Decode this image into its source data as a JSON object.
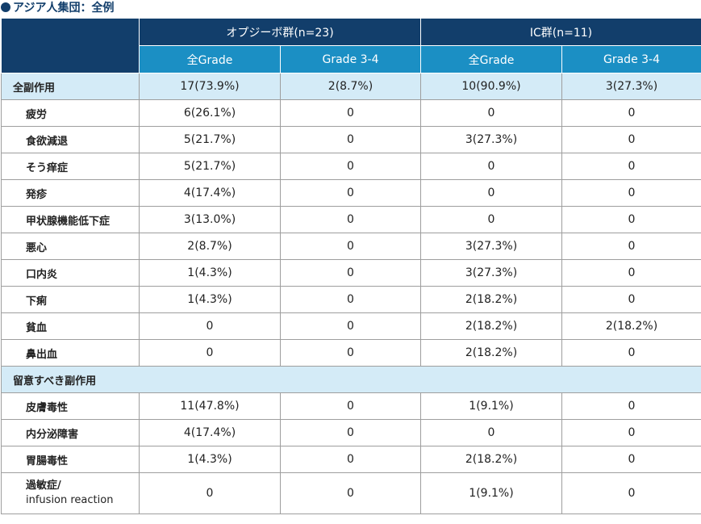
{
  "title": "アジア人集団：全例",
  "groups": [
    {
      "label": "オプジーボ群(n=23)"
    },
    {
      "label": "IC群(n=11)"
    }
  ],
  "subheaders": [
    "全Grade",
    "Grade 3-4",
    "全Grade",
    "Grade 3-4"
  ],
  "sections": [
    {
      "label": "全副作用",
      "values": [
        "17(73.9%)",
        "2(8.7%)",
        "10(90.9%)",
        "3(27.3%)"
      ],
      "rows": [
        {
          "label": "疲労",
          "values": [
            "6(26.1%)",
            "0",
            "0",
            "0"
          ]
        },
        {
          "label": "食欲減退",
          "values": [
            "5(21.7%)",
            "0",
            "3(27.3%)",
            "0"
          ]
        },
        {
          "label": "そう痒症",
          "values": [
            "5(21.7%)",
            "0",
            "0",
            "0"
          ]
        },
        {
          "label": "発疹",
          "values": [
            "4(17.4%)",
            "0",
            "0",
            "0"
          ]
        },
        {
          "label": "甲状腺機能低下症",
          "values": [
            "3(13.0%)",
            "0",
            "0",
            "0"
          ]
        },
        {
          "label": "悪心",
          "values": [
            "2(8.7%)",
            "0",
            "3(27.3%)",
            "0"
          ]
        },
        {
          "label": "口内炎",
          "values": [
            "1(4.3%)",
            "0",
            "3(27.3%)",
            "0"
          ]
        },
        {
          "label": "下痢",
          "values": [
            "1(4.3%)",
            "0",
            "2(18.2%)",
            "0"
          ]
        },
        {
          "label": "貧血",
          "values": [
            "0",
            "0",
            "2(18.2%)",
            "2(18.2%)"
          ]
        },
        {
          "label": "鼻出血",
          "values": [
            "0",
            "0",
            "2(18.2%)",
            "0"
          ]
        }
      ]
    },
    {
      "label": "留意すべき副作用",
      "rows": [
        {
          "label": "皮膚毒性",
          "values": [
            "11(47.8%)",
            "0",
            "1(9.1%)",
            "0"
          ]
        },
        {
          "label": "内分泌障害",
          "values": [
            "4(17.4%)",
            "0",
            "0",
            "0"
          ]
        },
        {
          "label": "胃腸毒性",
          "values": [
            "1(4.3%)",
            "0",
            "2(18.2%)",
            "0"
          ]
        },
        {
          "label": "過敏症/",
          "label2": "infusion reaction",
          "values": [
            "0",
            "0",
            "1(9.1%)",
            "0"
          ]
        }
      ]
    }
  ]
}
